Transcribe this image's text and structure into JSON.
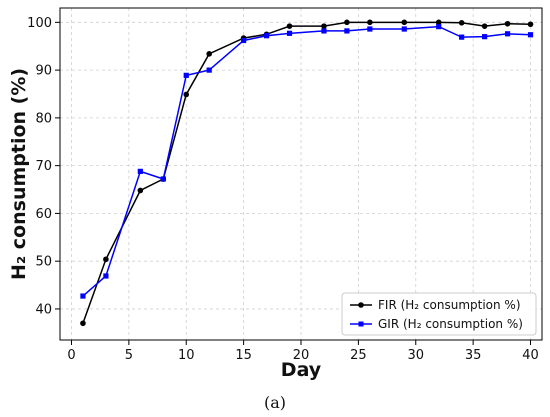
{
  "caption": "(a)",
  "chart_data": {
    "type": "line",
    "title": "",
    "xlabel": "Day",
    "ylabel": "H₂ consumption (%)",
    "xlim": [
      -1,
      41
    ],
    "ylim": [
      33.5,
      103
    ],
    "xticks": [
      0,
      5,
      10,
      15,
      20,
      25,
      30,
      35,
      40
    ],
    "yticks": [
      40,
      50,
      60,
      70,
      80,
      90,
      100
    ],
    "grid": true,
    "legend_position": "bottom-right",
    "series": [
      {
        "name": "FIR (H₂ consumption %)",
        "color": "#000000",
        "marker": "circle",
        "points": [
          [
            1,
            37.0
          ],
          [
            3,
            50.4
          ],
          [
            6,
            64.8
          ],
          [
            8,
            67.2
          ],
          [
            10,
            84.9
          ],
          [
            12,
            93.4
          ],
          [
            15,
            96.7
          ],
          [
            17,
            97.5
          ],
          [
            19,
            99.2
          ],
          [
            22,
            99.2
          ],
          [
            24,
            100.0
          ],
          [
            26,
            100.0
          ],
          [
            29,
            100.0
          ],
          [
            32,
            100.0
          ],
          [
            34,
            99.9
          ],
          [
            36,
            99.2
          ],
          [
            38,
            99.7
          ],
          [
            40,
            99.6
          ]
        ]
      },
      {
        "name": "GIR (H₂ consumption %)",
        "color": "#0000ff",
        "marker": "square",
        "points": [
          [
            1,
            42.7
          ],
          [
            3,
            46.9
          ],
          [
            6,
            68.8
          ],
          [
            8,
            67.2
          ],
          [
            10,
            88.9
          ],
          [
            12,
            90.0
          ],
          [
            15,
            96.2
          ],
          [
            17,
            97.2
          ],
          [
            19,
            97.7
          ],
          [
            22,
            98.2
          ],
          [
            24,
            98.2
          ],
          [
            26,
            98.6
          ],
          [
            29,
            98.6
          ],
          [
            32,
            99.1
          ],
          [
            34,
            96.9
          ],
          [
            36,
            97.0
          ],
          [
            38,
            97.6
          ],
          [
            40,
            97.4
          ]
        ]
      }
    ]
  }
}
